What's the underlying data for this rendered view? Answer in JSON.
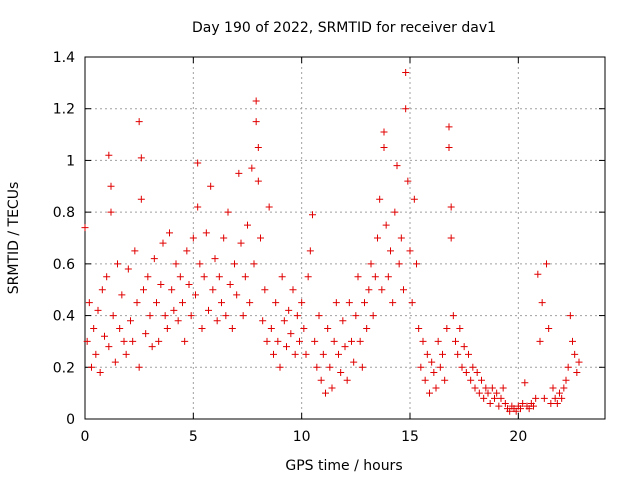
{
  "chart_data": {
    "type": "scatter",
    "title": "Day 190 of 2022, SRMTID for receiver dav1",
    "xlabel": "GPS time / hours",
    "ylabel": "SRMTID / TECUs",
    "xlim": [
      0,
      24
    ],
    "ylim": [
      0,
      1.4
    ],
    "xticks": [
      0,
      5,
      10,
      15,
      20
    ],
    "xtick_labels": [
      "0",
      "5",
      "10",
      "15",
      "20"
    ],
    "yticks": [
      0,
      0.2,
      0.4,
      0.6,
      0.8,
      1.0,
      1.2,
      1.4
    ],
    "ytick_labels": [
      "0",
      "0.2",
      "0.4",
      "0.6",
      "0.8",
      "1",
      "1.2",
      "1.4"
    ],
    "grid": true,
    "marker": "plus",
    "color": "#e00000",
    "series": [
      {
        "name": "SRMTID",
        "points": [
          [
            0.0,
            0.74
          ],
          [
            0.1,
            0.3
          ],
          [
            0.2,
            0.45
          ],
          [
            0.3,
            0.2
          ],
          [
            0.4,
            0.35
          ],
          [
            0.5,
            0.25
          ],
          [
            0.6,
            0.42
          ],
          [
            0.7,
            0.18
          ],
          [
            0.8,
            0.5
          ],
          [
            0.9,
            0.32
          ],
          [
            1.0,
            0.55
          ],
          [
            1.1,
            0.28
          ],
          [
            1.1,
            1.02
          ],
          [
            1.2,
            0.9
          ],
          [
            1.2,
            0.8
          ],
          [
            1.3,
            0.4
          ],
          [
            1.4,
            0.22
          ],
          [
            1.5,
            0.6
          ],
          [
            1.6,
            0.35
          ],
          [
            1.7,
            0.48
          ],
          [
            1.8,
            0.3
          ],
          [
            1.9,
            0.25
          ],
          [
            2.0,
            0.58
          ],
          [
            2.1,
            0.38
          ],
          [
            2.2,
            0.3
          ],
          [
            2.3,
            0.65
          ],
          [
            2.4,
            0.45
          ],
          [
            2.5,
            0.2
          ],
          [
            2.5,
            1.15
          ],
          [
            2.6,
            1.01
          ],
          [
            2.6,
            0.85
          ],
          [
            2.7,
            0.5
          ],
          [
            2.8,
            0.33
          ],
          [
            2.9,
            0.55
          ],
          [
            3.0,
            0.4
          ],
          [
            3.1,
            0.28
          ],
          [
            3.2,
            0.62
          ],
          [
            3.3,
            0.45
          ],
          [
            3.4,
            0.3
          ],
          [
            3.5,
            0.52
          ],
          [
            3.6,
            0.68
          ],
          [
            3.7,
            0.4
          ],
          [
            3.8,
            0.35
          ],
          [
            3.9,
            0.72
          ],
          [
            4.0,
            0.5
          ],
          [
            4.1,
            0.42
          ],
          [
            4.2,
            0.6
          ],
          [
            4.3,
            0.38
          ],
          [
            4.4,
            0.55
          ],
          [
            4.5,
            0.45
          ],
          [
            4.6,
            0.3
          ],
          [
            4.7,
            0.65
          ],
          [
            4.8,
            0.52
          ],
          [
            4.9,
            0.4
          ],
          [
            5.0,
            0.7
          ],
          [
            5.1,
            0.48
          ],
          [
            5.2,
            0.99
          ],
          [
            5.2,
            0.82
          ],
          [
            5.3,
            0.6
          ],
          [
            5.4,
            0.35
          ],
          [
            5.5,
            0.55
          ],
          [
            5.6,
            0.72
          ],
          [
            5.7,
            0.42
          ],
          [
            5.8,
            0.9
          ],
          [
            5.9,
            0.5
          ],
          [
            6.0,
            0.62
          ],
          [
            6.1,
            0.38
          ],
          [
            6.2,
            0.55
          ],
          [
            6.3,
            0.45
          ],
          [
            6.4,
            0.7
          ],
          [
            6.5,
            0.4
          ],
          [
            6.6,
            0.8
          ],
          [
            6.7,
            0.52
          ],
          [
            6.8,
            0.35
          ],
          [
            6.9,
            0.6
          ],
          [
            7.0,
            0.48
          ],
          [
            7.1,
            0.95
          ],
          [
            7.2,
            0.68
          ],
          [
            7.3,
            0.4
          ],
          [
            7.4,
            0.55
          ],
          [
            7.5,
            0.75
          ],
          [
            7.6,
            0.45
          ],
          [
            7.7,
            0.97
          ],
          [
            7.8,
            0.6
          ],
          [
            7.9,
            1.23
          ],
          [
            7.9,
            1.15
          ],
          [
            8.0,
            1.05
          ],
          [
            8.0,
            0.92
          ],
          [
            8.1,
            0.7
          ],
          [
            8.2,
            0.38
          ],
          [
            8.3,
            0.5
          ],
          [
            8.4,
            0.3
          ],
          [
            8.5,
            0.82
          ],
          [
            8.6,
            0.35
          ],
          [
            8.7,
            0.25
          ],
          [
            8.8,
            0.45
          ],
          [
            8.9,
            0.3
          ],
          [
            9.0,
            0.2
          ],
          [
            9.1,
            0.55
          ],
          [
            9.2,
            0.38
          ],
          [
            9.3,
            0.28
          ],
          [
            9.4,
            0.42
          ],
          [
            9.5,
            0.33
          ],
          [
            9.6,
            0.5
          ],
          [
            9.7,
            0.25
          ],
          [
            9.8,
            0.4
          ],
          [
            9.9,
            0.3
          ],
          [
            10.0,
            0.45
          ],
          [
            10.1,
            0.35
          ],
          [
            10.2,
            0.25
          ],
          [
            10.3,
            0.55
          ],
          [
            10.4,
            0.65
          ],
          [
            10.5,
            0.79
          ],
          [
            10.6,
            0.3
          ],
          [
            10.7,
            0.2
          ],
          [
            10.8,
            0.4
          ],
          [
            10.9,
            0.15
          ],
          [
            11.0,
            0.25
          ],
          [
            11.1,
            0.1
          ],
          [
            11.2,
            0.35
          ],
          [
            11.3,
            0.2
          ],
          [
            11.4,
            0.12
          ],
          [
            11.5,
            0.3
          ],
          [
            11.6,
            0.45
          ],
          [
            11.7,
            0.25
          ],
          [
            11.8,
            0.18
          ],
          [
            11.9,
            0.38
          ],
          [
            12.0,
            0.28
          ],
          [
            12.1,
            0.15
          ],
          [
            12.2,
            0.45
          ],
          [
            12.3,
            0.3
          ],
          [
            12.4,
            0.22
          ],
          [
            12.5,
            0.4
          ],
          [
            12.6,
            0.55
          ],
          [
            12.7,
            0.3
          ],
          [
            12.8,
            0.2
          ],
          [
            12.9,
            0.45
          ],
          [
            13.0,
            0.35
          ],
          [
            13.1,
            0.5
          ],
          [
            13.2,
            0.6
          ],
          [
            13.3,
            0.4
          ],
          [
            13.4,
            0.55
          ],
          [
            13.5,
            0.7
          ],
          [
            13.6,
            0.85
          ],
          [
            13.7,
            0.5
          ],
          [
            13.8,
            1.11
          ],
          [
            13.8,
            1.05
          ],
          [
            13.9,
            0.75
          ],
          [
            14.0,
            0.55
          ],
          [
            14.1,
            0.65
          ],
          [
            14.2,
            0.45
          ],
          [
            14.3,
            0.8
          ],
          [
            14.4,
            0.98
          ],
          [
            14.5,
            0.6
          ],
          [
            14.6,
            0.7
          ],
          [
            14.7,
            0.5
          ],
          [
            14.8,
            1.34
          ],
          [
            14.8,
            1.2
          ],
          [
            14.9,
            0.92
          ],
          [
            15.0,
            0.65
          ],
          [
            15.1,
            0.45
          ],
          [
            15.2,
            0.85
          ],
          [
            15.3,
            0.6
          ],
          [
            15.4,
            0.35
          ],
          [
            15.5,
            0.2
          ],
          [
            15.6,
            0.3
          ],
          [
            15.7,
            0.15
          ],
          [
            15.8,
            0.25
          ],
          [
            15.9,
            0.1
          ],
          [
            16.0,
            0.22
          ],
          [
            16.1,
            0.18
          ],
          [
            16.2,
            0.12
          ],
          [
            16.3,
            0.3
          ],
          [
            16.4,
            0.2
          ],
          [
            16.5,
            0.25
          ],
          [
            16.6,
            0.15
          ],
          [
            16.7,
            0.35
          ],
          [
            16.8,
            1.13
          ],
          [
            16.8,
            1.05
          ],
          [
            16.9,
            0.82
          ],
          [
            16.9,
            0.7
          ],
          [
            17.0,
            0.4
          ],
          [
            17.1,
            0.3
          ],
          [
            17.2,
            0.25
          ],
          [
            17.3,
            0.35
          ],
          [
            17.4,
            0.2
          ],
          [
            17.5,
            0.28
          ],
          [
            17.6,
            0.18
          ],
          [
            17.7,
            0.25
          ],
          [
            17.8,
            0.15
          ],
          [
            17.9,
            0.2
          ],
          [
            18.0,
            0.12
          ],
          [
            18.1,
            0.18
          ],
          [
            18.2,
            0.1
          ],
          [
            18.3,
            0.15
          ],
          [
            18.4,
            0.08
          ],
          [
            18.5,
            0.12
          ],
          [
            18.6,
            0.1
          ],
          [
            18.7,
            0.06
          ],
          [
            18.8,
            0.12
          ],
          [
            18.9,
            0.08
          ],
          [
            19.0,
            0.1
          ],
          [
            19.1,
            0.05
          ],
          [
            19.2,
            0.08
          ],
          [
            19.3,
            0.12
          ],
          [
            19.4,
            0.06
          ],
          [
            19.5,
            0.04
          ],
          [
            19.6,
            0.03
          ],
          [
            19.7,
            0.05
          ],
          [
            19.8,
            0.04
          ],
          [
            19.9,
            0.03
          ],
          [
            20.0,
            0.05
          ],
          [
            20.1,
            0.04
          ],
          [
            20.2,
            0.06
          ],
          [
            20.3,
            0.14
          ],
          [
            20.4,
            0.05
          ],
          [
            20.5,
            0.04
          ],
          [
            20.6,
            0.06
          ],
          [
            20.7,
            0.05
          ],
          [
            20.8,
            0.08
          ],
          [
            20.9,
            0.56
          ],
          [
            21.0,
            0.3
          ],
          [
            21.1,
            0.45
          ],
          [
            21.2,
            0.08
          ],
          [
            21.3,
            0.6
          ],
          [
            21.4,
            0.35
          ],
          [
            21.5,
            0.06
          ],
          [
            21.6,
            0.12
          ],
          [
            21.7,
            0.08
          ],
          [
            21.8,
            0.06
          ],
          [
            21.9,
            0.1
          ],
          [
            22.0,
            0.08
          ],
          [
            22.1,
            0.12
          ],
          [
            22.2,
            0.15
          ],
          [
            22.3,
            0.2
          ],
          [
            22.4,
            0.4
          ],
          [
            22.5,
            0.3
          ],
          [
            22.6,
            0.25
          ],
          [
            22.7,
            0.18
          ],
          [
            22.8,
            0.22
          ]
        ]
      }
    ]
  }
}
